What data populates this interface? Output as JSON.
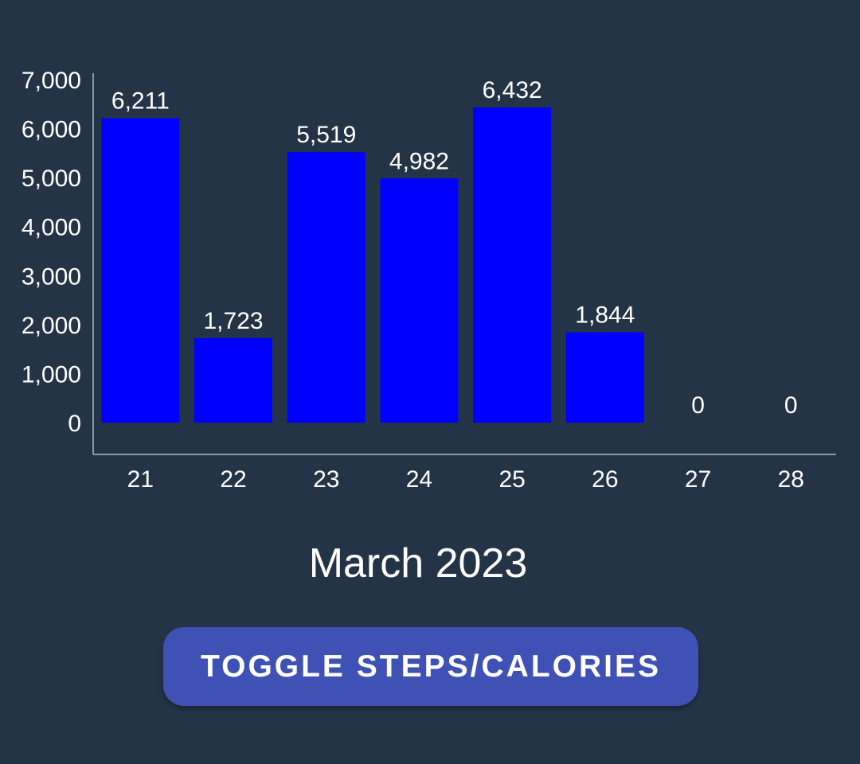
{
  "colors": {
    "background": "#243447",
    "bar": "#0000FF",
    "text": "#FFFFFF",
    "axis": "#B0B6BE",
    "button": "#3F51B5"
  },
  "chart_data": {
    "type": "bar",
    "categories": [
      "21",
      "22",
      "23",
      "24",
      "25",
      "26",
      "27",
      "28"
    ],
    "values": [
      6211,
      1723,
      5519,
      4982,
      6432,
      1844,
      0,
      0
    ],
    "value_labels": [
      "6,211",
      "1,723",
      "5,519",
      "4,982",
      "6,432",
      "1,844",
      "0",
      "0"
    ],
    "ylim": [
      0,
      7000
    ],
    "yticks": [
      0,
      1000,
      2000,
      3000,
      4000,
      5000,
      6000,
      7000
    ],
    "ytick_labels": [
      "0",
      "1,000",
      "2,000",
      "3,000",
      "4,000",
      "5,000",
      "6,000",
      "7,000"
    ],
    "grid": false,
    "legend": "none"
  },
  "footer": {
    "month": "March 2023"
  },
  "toggle_button": {
    "label": "TOGGLE STEPS/CALORIES"
  }
}
